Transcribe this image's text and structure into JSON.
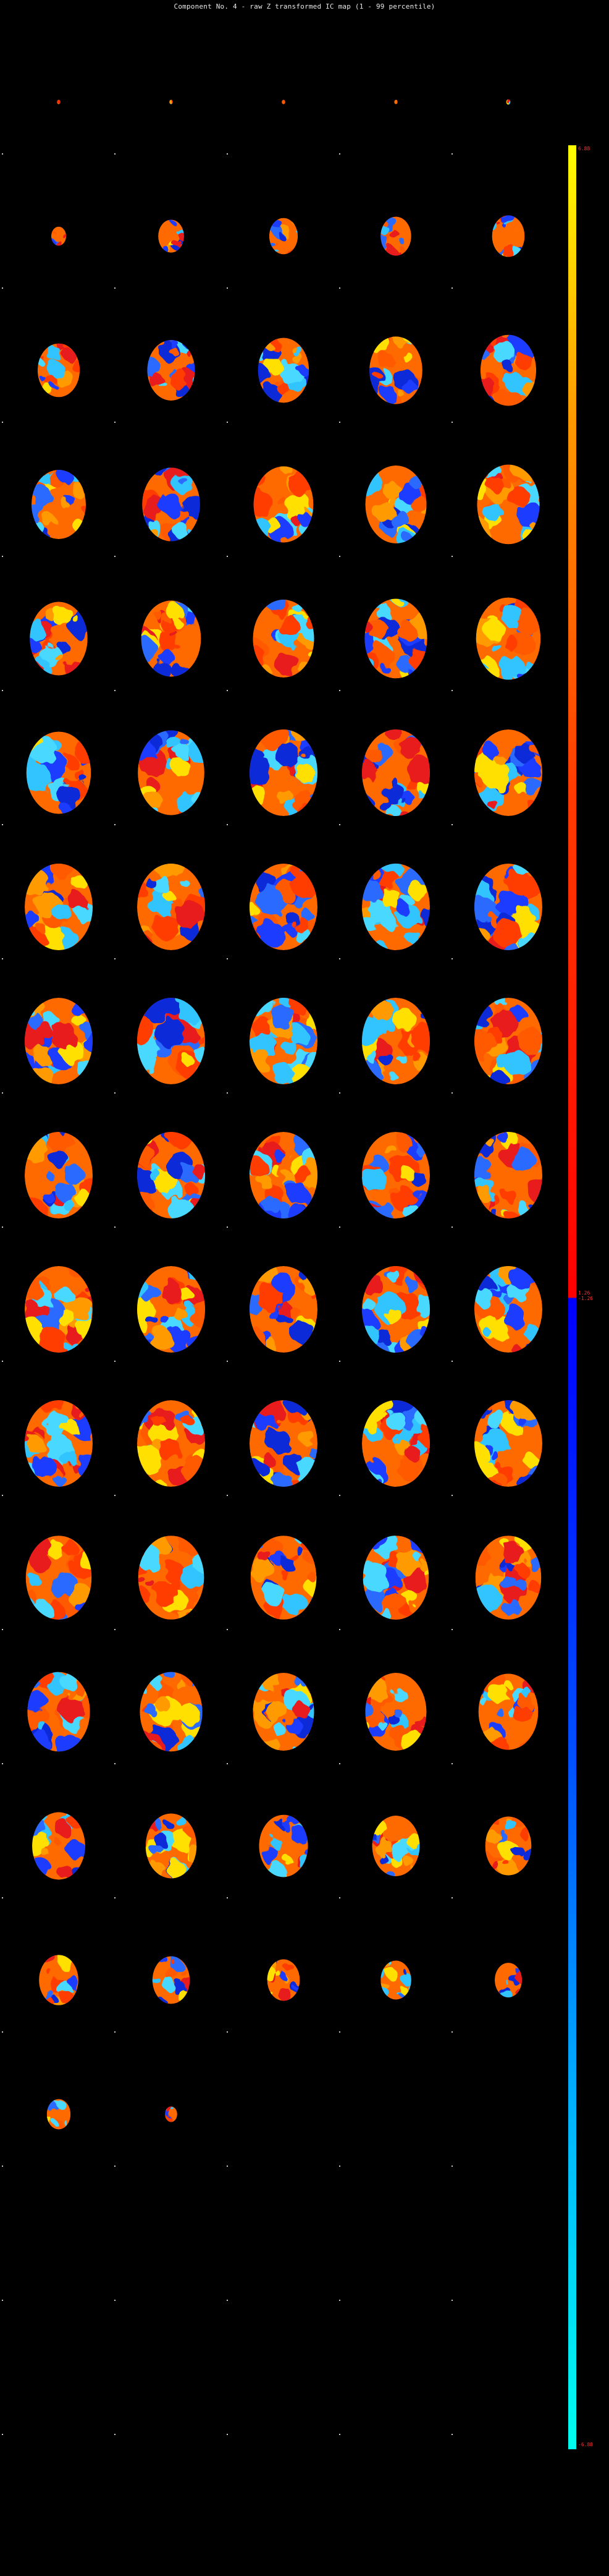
{
  "title": "Component No. 4 - raw Z transformed IC map (1 - 99 percentile)",
  "colorbar": {
    "max_label": "6.88",
    "mid_label": "1.26\n-1.26",
    "min_label": "-6.88",
    "colors": [
      "#ffff00",
      "#ff9800",
      "#ff0000",
      "#0000ff",
      "#0050ff",
      "#00ffee"
    ]
  },
  "grid": {
    "rows": 18,
    "columns": 5,
    "slice_sizes": [
      [
        0.05,
        0.05,
        0.05,
        0.05,
        0.06
      ],
      [
        0.22,
        0.38,
        0.42,
        0.45,
        0.48
      ],
      [
        0.62,
        0.7,
        0.75,
        0.78,
        0.82
      ],
      [
        0.8,
        0.85,
        0.88,
        0.9,
        0.92
      ],
      [
        0.85,
        0.88,
        0.9,
        0.92,
        0.95
      ],
      [
        0.95,
        0.98,
        1.0,
        1.0,
        1.0
      ],
      [
        1.0,
        1.0,
        1.0,
        1.0,
        1.0
      ],
      [
        1.0,
        1.0,
        1.0,
        1.0,
        1.0
      ],
      [
        1.0,
        1.0,
        1.0,
        1.0,
        1.0
      ],
      [
        1.0,
        1.0,
        1.0,
        1.0,
        1.0
      ],
      [
        1.0,
        1.0,
        1.0,
        1.0,
        1.0
      ],
      [
        0.97,
        0.97,
        0.97,
        0.97,
        0.97
      ],
      [
        0.92,
        0.92,
        0.9,
        0.9,
        0.88
      ],
      [
        0.78,
        0.75,
        0.72,
        0.7,
        0.68
      ],
      [
        0.58,
        0.55,
        0.48,
        0.45,
        0.4
      ],
      [
        0.35,
        0.18,
        0.0,
        0.0,
        0.0
      ],
      [
        0.0,
        0.0,
        0.0,
        0.0,
        0.0
      ],
      [
        0.0,
        0.0,
        0.0,
        0.0,
        0.0
      ]
    ]
  }
}
